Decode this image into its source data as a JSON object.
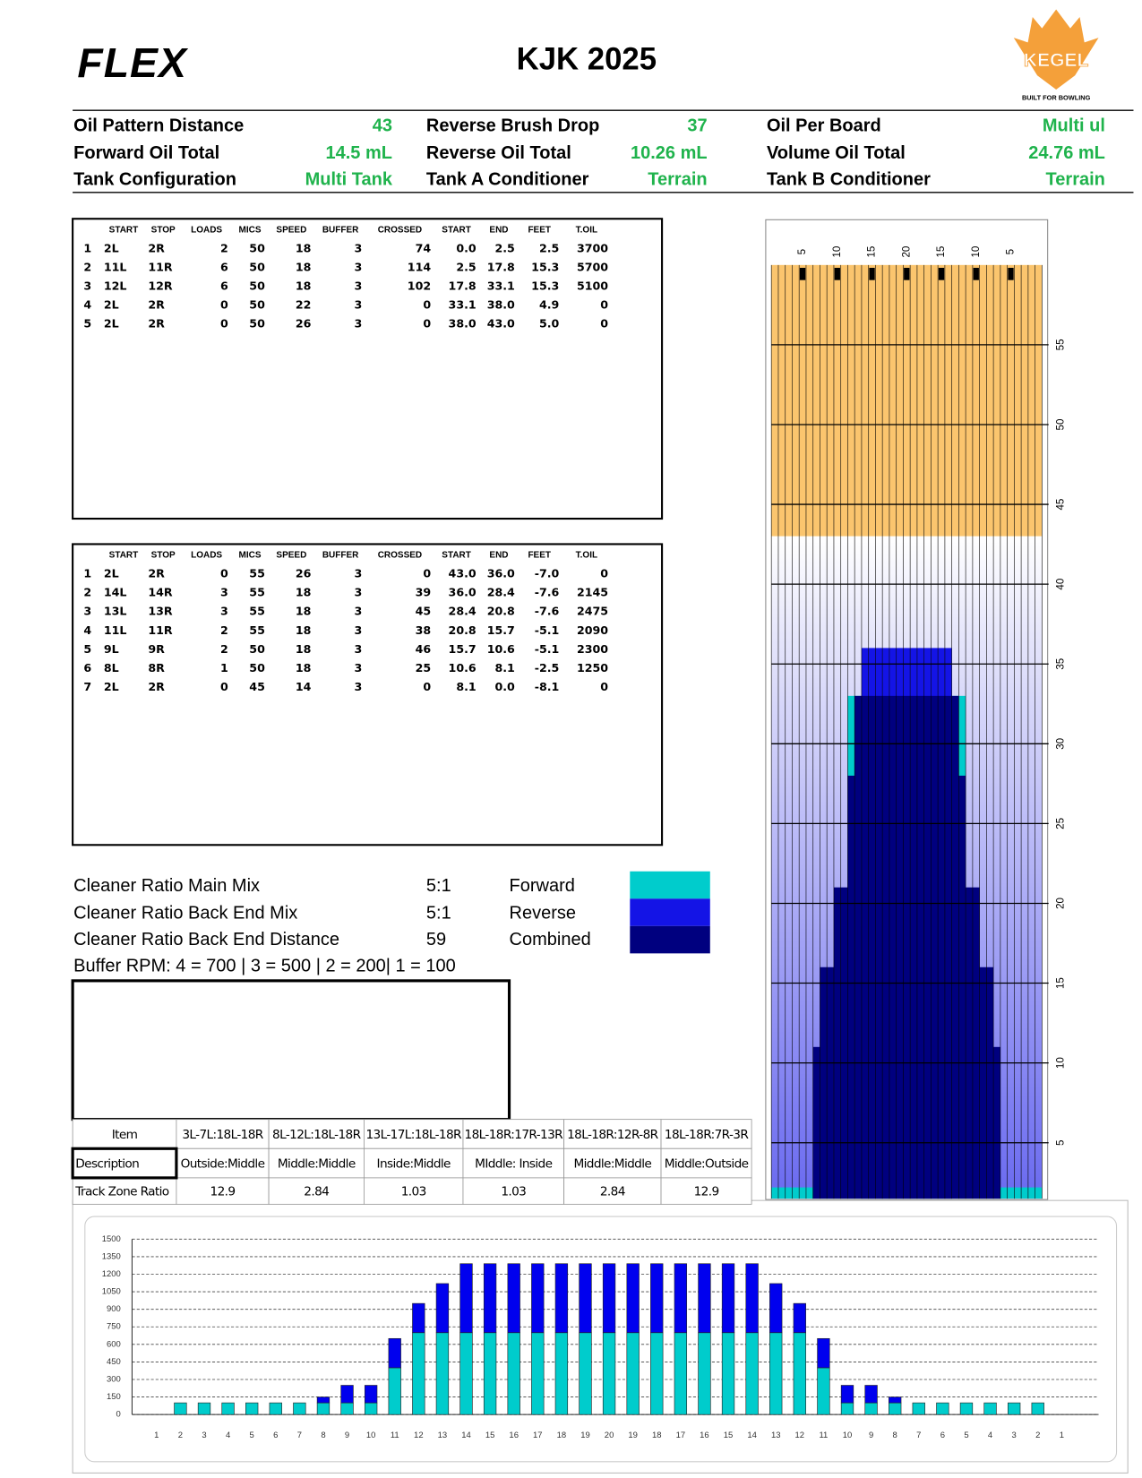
{
  "header": {
    "logo": "FLEX",
    "title": "KJK 2025",
    "brand": "KEGEL",
    "tagline": "BUILT FOR BOWLING"
  },
  "summary": {
    "rows": [
      [
        {
          "label": "Oil Pattern Distance",
          "value": "43"
        },
        {
          "label": "Reverse Brush Drop",
          "value": "37"
        },
        {
          "label": "Oil Per Board",
          "value": "Multi ul"
        }
      ],
      [
        {
          "label": "Forward Oil Total",
          "value": "14.5 mL"
        },
        {
          "label": "Reverse Oil Total",
          "value": "10.26 mL"
        },
        {
          "label": "Volume Oil Total",
          "value": "24.76 mL"
        }
      ],
      [
        {
          "label": "Tank Configuration",
          "value": "Multi Tank"
        },
        {
          "label": "Tank A Conditioner",
          "value": "Terrain"
        },
        {
          "label": "Tank B Conditioner",
          "value": "Terrain"
        }
      ]
    ]
  },
  "forward_table": {
    "columns": [
      "START",
      "STOP",
      "LOADS",
      "MICS",
      "SPEED",
      "BUFFER",
      "CROSSED",
      "START",
      "END",
      "FEET",
      "T.OIL"
    ],
    "rows": [
      [
        "1",
        "2L",
        "2R",
        "2",
        "50",
        "18",
        "3",
        "74",
        "0.0",
        "2.5",
        "2.5",
        "3700"
      ],
      [
        "2",
        "11L",
        "11R",
        "6",
        "50",
        "18",
        "3",
        "114",
        "2.5",
        "17.8",
        "15.3",
        "5700"
      ],
      [
        "3",
        "12L",
        "12R",
        "6",
        "50",
        "18",
        "3",
        "102",
        "17.8",
        "33.1",
        "15.3",
        "5100"
      ],
      [
        "4",
        "2L",
        "2R",
        "0",
        "50",
        "22",
        "3",
        "0",
        "33.1",
        "38.0",
        "4.9",
        "0"
      ],
      [
        "5",
        "2L",
        "2R",
        "0",
        "50",
        "26",
        "3",
        "0",
        "38.0",
        "43.0",
        "5.0",
        "0"
      ]
    ]
  },
  "reverse_table": {
    "columns": [
      "START",
      "STOP",
      "LOADS",
      "MICS",
      "SPEED",
      "BUFFER",
      "CROSSED",
      "START",
      "END",
      "FEET",
      "T.OIL"
    ],
    "rows": [
      [
        "1",
        "2L",
        "2R",
        "0",
        "55",
        "26",
        "3",
        "0",
        "43.0",
        "36.0",
        "-7.0",
        "0"
      ],
      [
        "2",
        "14L",
        "14R",
        "3",
        "55",
        "18",
        "3",
        "39",
        "36.0",
        "28.4",
        "-7.6",
        "2145"
      ],
      [
        "3",
        "13L",
        "13R",
        "3",
        "55",
        "18",
        "3",
        "45",
        "28.4",
        "20.8",
        "-7.6",
        "2475"
      ],
      [
        "4",
        "11L",
        "11R",
        "2",
        "55",
        "18",
        "3",
        "38",
        "20.8",
        "15.7",
        "-5.1",
        "2090"
      ],
      [
        "5",
        "9L",
        "9R",
        "2",
        "50",
        "18",
        "3",
        "46",
        "15.7",
        "10.6",
        "-5.1",
        "2300"
      ],
      [
        "6",
        "8L",
        "8R",
        "1",
        "50",
        "18",
        "3",
        "25",
        "10.6",
        "8.1",
        "-2.5",
        "1250"
      ],
      [
        "7",
        "2L",
        "2R",
        "0",
        "45",
        "14",
        "3",
        "0",
        "8.1",
        "0.0",
        "-8.1",
        "0"
      ]
    ]
  },
  "cleaner": {
    "rows": [
      {
        "label": "Cleaner Ratio Main Mix",
        "value": "5:1"
      },
      {
        "label": "Cleaner Ratio Back End Mix",
        "value": "5:1"
      },
      {
        "label": "Cleaner Ratio Back End Distance",
        "value": "59"
      }
    ],
    "legend": [
      {
        "name": "Forward",
        "color": "#00cccc"
      },
      {
        "name": "Reverse",
        "color": "#1414e6"
      },
      {
        "name": "Combined",
        "color": "#00007f"
      }
    ],
    "buffer_rpm": "Buffer RPM: 4 = 700 | 3 = 500 | 2 = 200| 1 = 100"
  },
  "track_zone": {
    "header": [
      "Item",
      "3L-7L:18L-18R",
      "8L-12L:18L-18R",
      "13L-17L:18L-18R",
      "18L-18R:17R-13R",
      "18L-18R:12R-8R",
      "18L-18R:7R-3R"
    ],
    "rows": [
      [
        "Description",
        "Outside:Middle",
        "Middle:Middle",
        "Inside:Middle",
        "MIddle: Inside",
        "Middle:Middle",
        "Middle:Outside"
      ],
      [
        "Track Zone Ratio",
        "12.9",
        "2.84",
        "1.03",
        "1.03",
        "2.84",
        "12.9"
      ]
    ]
  },
  "chart_data": [
    {
      "type": "lane",
      "categories": [
        null,
        null,
        null,
        null,
        5,
        null,
        null,
        null,
        null,
        10,
        null,
        null,
        null,
        null,
        15,
        null,
        null,
        null,
        null,
        20,
        null,
        null,
        null,
        null,
        15,
        null,
        null,
        null,
        null,
        10,
        null,
        null,
        null,
        null,
        5,
        null,
        null,
        null,
        null
      ],
      "series": [
        {
          "name": "Forward",
          "color": "#00cccc",
          "values": [
            2.2,
            2.2,
            2.2,
            2.2,
            2.2,
            2.2,
            2.2,
            2.2,
            2.2,
            2.2,
            2.2,
            33,
            33,
            33,
            33,
            33,
            33,
            33,
            33,
            33,
            33,
            33,
            33,
            33,
            33,
            33,
            33,
            33,
            2.2,
            2.2,
            2.2,
            2.2,
            2.2,
            2.2,
            2.2,
            2.2,
            2.2,
            2.2,
            2.2
          ]
        },
        {
          "name": "Reverse",
          "color": "#1414e6",
          "values": [
            null,
            null,
            null,
            null,
            null,
            null,
            null,
            null,
            null,
            null,
            null,
            null,
            null,
            36,
            36,
            36,
            36,
            36,
            36,
            36,
            36,
            36,
            36,
            36,
            36,
            36,
            null,
            null,
            null,
            null,
            null,
            null,
            null,
            null,
            null,
            null,
            null,
            null,
            null
          ]
        },
        {
          "name": "Combined",
          "color": "#00007f",
          "values": [
            null,
            null,
            null,
            null,
            null,
            null,
            11,
            16,
            16,
            21,
            21,
            28,
            33,
            33,
            33,
            33,
            33,
            33,
            33,
            33,
            33,
            33,
            33,
            33,
            33,
            33,
            33,
            28,
            21,
            21,
            16,
            16,
            11,
            null,
            null,
            null,
            null,
            null,
            null
          ]
        }
      ],
      "ylim": [
        1.5,
        60
      ],
      "yticks": [
        5,
        10,
        15,
        20,
        25,
        30,
        35,
        40,
        45,
        50,
        55
      ],
      "grid": true
    },
    {
      "type": "bar",
      "stacked": true,
      "categories": [
        1,
        2,
        3,
        4,
        5,
        6,
        7,
        8,
        9,
        10,
        11,
        12,
        13,
        14,
        15,
        16,
        17,
        18,
        19,
        20,
        19,
        18,
        17,
        16,
        15,
        14,
        13,
        12,
        11,
        10,
        9,
        8,
        7,
        6,
        5,
        4,
        3,
        2,
        1
      ],
      "series": [
        {
          "name": "Forward",
          "color": "#00cccc",
          "values": [
            null,
            100,
            100,
            100,
            100,
            100,
            100,
            100,
            100,
            100,
            400,
            700,
            700,
            700,
            700,
            700,
            700,
            700,
            700,
            700,
            700,
            700,
            700,
            700,
            700,
            700,
            700,
            700,
            400,
            100,
            100,
            100,
            100,
            100,
            100,
            100,
            100,
            100,
            null
          ]
        },
        {
          "name": "Reverse",
          "color": "#0000ee",
          "values": [
            null,
            0,
            0,
            0,
            0,
            0,
            0,
            50,
            150,
            150,
            250,
            250,
            420,
            590,
            590,
            590,
            590,
            590,
            590,
            590,
            590,
            590,
            590,
            590,
            590,
            590,
            420,
            250,
            250,
            150,
            150,
            50,
            0,
            0,
            0,
            0,
            0,
            0,
            null
          ]
        }
      ],
      "ylim": [
        0,
        1500
      ],
      "yticks": [
        0,
        150,
        300,
        450,
        600,
        750,
        900,
        1050,
        1200,
        1350,
        1500
      ],
      "grid": true
    }
  ]
}
